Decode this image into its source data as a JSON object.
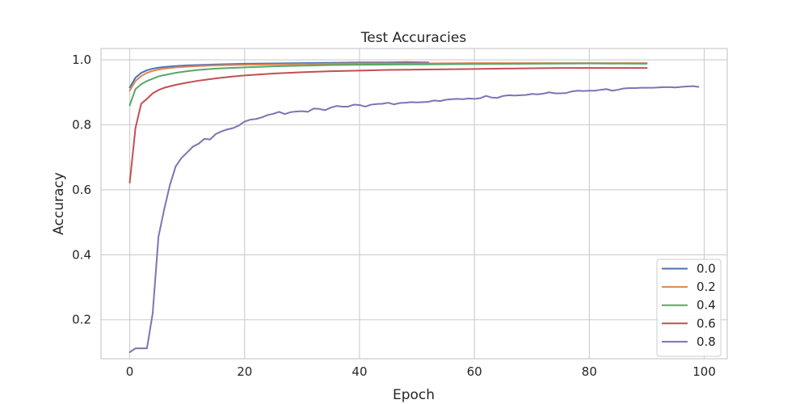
{
  "chart_data": {
    "type": "line",
    "title": "Test Accuracies",
    "xlabel": "Epoch",
    "ylabel": "Accuracy",
    "xlim": [
      -5,
      104
    ],
    "ylim": [
      0.08,
      1.035
    ],
    "xticks": [
      0,
      20,
      40,
      60,
      80,
      100
    ],
    "yticks": [
      0.2,
      0.4,
      0.6,
      0.8,
      1.0
    ],
    "xtick_labels": [
      "0",
      "20",
      "40",
      "60",
      "80",
      "100"
    ],
    "ytick_labels": [
      "0.2",
      "0.4",
      "0.6",
      "0.8",
      "1.0"
    ],
    "grid": true,
    "legend_position": "lower-right",
    "series": [
      {
        "name": "0.0",
        "color": "#4c72b0",
        "points": [
          [
            0,
            0.915
          ],
          [
            1,
            0.945
          ],
          [
            2,
            0.96
          ],
          [
            3,
            0.968
          ],
          [
            4,
            0.973
          ],
          [
            5,
            0.976
          ],
          [
            6,
            0.978
          ],
          [
            8,
            0.981
          ],
          [
            10,
            0.983
          ],
          [
            12,
            0.984
          ],
          [
            15,
            0.986
          ],
          [
            20,
            0.988
          ],
          [
            25,
            0.989
          ],
          [
            30,
            0.99
          ],
          [
            35,
            0.991
          ],
          [
            40,
            0.992
          ],
          [
            45,
            0.992
          ],
          [
            48,
            0.993
          ],
          [
            52,
            0.992
          ]
        ]
      },
      {
        "name": "0.2",
        "color": "#dd8452",
        "points": [
          [
            0,
            0.905
          ],
          [
            1,
            0.935
          ],
          [
            2,
            0.95
          ],
          [
            3,
            0.96
          ],
          [
            4,
            0.966
          ],
          [
            5,
            0.97
          ],
          [
            6,
            0.973
          ],
          [
            8,
            0.977
          ],
          [
            10,
            0.979
          ],
          [
            12,
            0.981
          ],
          [
            15,
            0.983
          ],
          [
            20,
            0.985
          ],
          [
            25,
            0.986
          ],
          [
            30,
            0.987
          ],
          [
            35,
            0.988
          ],
          [
            40,
            0.989
          ],
          [
            50,
            0.989
          ],
          [
            60,
            0.99
          ],
          [
            70,
            0.99
          ],
          [
            80,
            0.99
          ],
          [
            90,
            0.99
          ]
        ]
      },
      {
        "name": "0.4",
        "color": "#55a868",
        "points": [
          [
            0,
            0.86
          ],
          [
            1,
            0.91
          ],
          [
            2,
            0.925
          ],
          [
            3,
            0.935
          ],
          [
            4,
            0.942
          ],
          [
            5,
            0.949
          ],
          [
            6,
            0.953
          ],
          [
            8,
            0.96
          ],
          [
            10,
            0.965
          ],
          [
            12,
            0.969
          ],
          [
            15,
            0.973
          ],
          [
            20,
            0.977
          ],
          [
            25,
            0.98
          ],
          [
            30,
            0.982
          ],
          [
            35,
            0.984
          ],
          [
            40,
            0.985
          ],
          [
            50,
            0.986
          ],
          [
            60,
            0.987
          ],
          [
            70,
            0.988
          ],
          [
            80,
            0.989
          ],
          [
            90,
            0.988
          ]
        ]
      },
      {
        "name": "0.6",
        "color": "#c44e52",
        "points": [
          [
            0,
            0.622
          ],
          [
            1,
            0.79
          ],
          [
            2,
            0.865
          ],
          [
            3,
            0.88
          ],
          [
            4,
            0.897
          ],
          [
            5,
            0.907
          ],
          [
            6,
            0.914
          ],
          [
            8,
            0.923
          ],
          [
            10,
            0.93
          ],
          [
            12,
            0.936
          ],
          [
            15,
            0.943
          ],
          [
            18,
            0.949
          ],
          [
            20,
            0.952
          ],
          [
            25,
            0.958
          ],
          [
            30,
            0.962
          ],
          [
            35,
            0.965
          ],
          [
            40,
            0.967
          ],
          [
            45,
            0.969
          ],
          [
            50,
            0.97
          ],
          [
            55,
            0.971
          ],
          [
            60,
            0.972
          ],
          [
            65,
            0.973
          ],
          [
            70,
            0.974
          ],
          [
            75,
            0.975
          ],
          [
            80,
            0.975
          ],
          [
            85,
            0.975
          ],
          [
            90,
            0.975
          ]
        ]
      },
      {
        "name": "0.8",
        "color": "#8172b3",
        "points": [
          [
            0,
            0.1
          ],
          [
            1,
            0.112
          ],
          [
            2,
            0.112
          ],
          [
            3,
            0.112
          ],
          [
            4,
            0.22
          ],
          [
            5,
            0.455
          ],
          [
            6,
            0.54
          ],
          [
            7,
            0.615
          ],
          [
            8,
            0.672
          ],
          [
            9,
            0.698
          ],
          [
            10,
            0.715
          ],
          [
            11,
            0.733
          ],
          [
            12,
            0.742
          ],
          [
            13,
            0.757
          ],
          [
            14,
            0.755
          ],
          [
            15,
            0.772
          ],
          [
            16,
            0.78
          ],
          [
            17,
            0.786
          ],
          [
            18,
            0.79
          ],
          [
            19,
            0.798
          ],
          [
            20,
            0.81
          ],
          [
            21,
            0.816
          ],
          [
            22,
            0.818
          ],
          [
            23,
            0.823
          ],
          [
            24,
            0.83
          ],
          [
            25,
            0.834
          ],
          [
            26,
            0.84
          ],
          [
            27,
            0.833
          ],
          [
            28,
            0.839
          ],
          [
            29,
            0.841
          ],
          [
            30,
            0.842
          ],
          [
            31,
            0.84
          ],
          [
            32,
            0.85
          ],
          [
            33,
            0.849
          ],
          [
            34,
            0.845
          ],
          [
            35,
            0.853
          ],
          [
            36,
            0.858
          ],
          [
            37,
            0.856
          ],
          [
            38,
            0.856
          ],
          [
            39,
            0.862
          ],
          [
            40,
            0.861
          ],
          [
            41,
            0.856
          ],
          [
            42,
            0.862
          ],
          [
            43,
            0.864
          ],
          [
            44,
            0.865
          ],
          [
            45,
            0.868
          ],
          [
            46,
            0.863
          ],
          [
            47,
            0.867
          ],
          [
            48,
            0.868
          ],
          [
            49,
            0.87
          ],
          [
            50,
            0.869
          ],
          [
            51,
            0.87
          ],
          [
            52,
            0.871
          ],
          [
            53,
            0.875
          ],
          [
            54,
            0.873
          ],
          [
            55,
            0.877
          ],
          [
            56,
            0.879
          ],
          [
            57,
            0.88
          ],
          [
            58,
            0.879
          ],
          [
            59,
            0.881
          ],
          [
            60,
            0.88
          ],
          [
            61,
            0.882
          ],
          [
            62,
            0.889
          ],
          [
            63,
            0.884
          ],
          [
            64,
            0.883
          ],
          [
            65,
            0.889
          ],
          [
            66,
            0.891
          ],
          [
            67,
            0.89
          ],
          [
            68,
            0.891
          ],
          [
            69,
            0.892
          ],
          [
            70,
            0.895
          ],
          [
            71,
            0.894
          ],
          [
            72,
            0.896
          ],
          [
            73,
            0.9
          ],
          [
            74,
            0.897
          ],
          [
            75,
            0.897
          ],
          [
            76,
            0.898
          ],
          [
            77,
            0.903
          ],
          [
            78,
            0.905
          ],
          [
            79,
            0.904
          ],
          [
            80,
            0.905
          ],
          [
            81,
            0.905
          ],
          [
            82,
            0.908
          ],
          [
            83,
            0.91
          ],
          [
            84,
            0.905
          ],
          [
            85,
            0.908
          ],
          [
            86,
            0.912
          ],
          [
            87,
            0.913
          ],
          [
            88,
            0.913
          ],
          [
            89,
            0.914
          ],
          [
            90,
            0.914
          ],
          [
            91,
            0.914
          ],
          [
            92,
            0.915
          ],
          [
            93,
            0.916
          ],
          [
            94,
            0.916
          ],
          [
            95,
            0.915
          ],
          [
            96,
            0.917
          ],
          [
            97,
            0.918
          ],
          [
            98,
            0.919
          ],
          [
            99,
            0.917
          ]
        ]
      }
    ]
  }
}
